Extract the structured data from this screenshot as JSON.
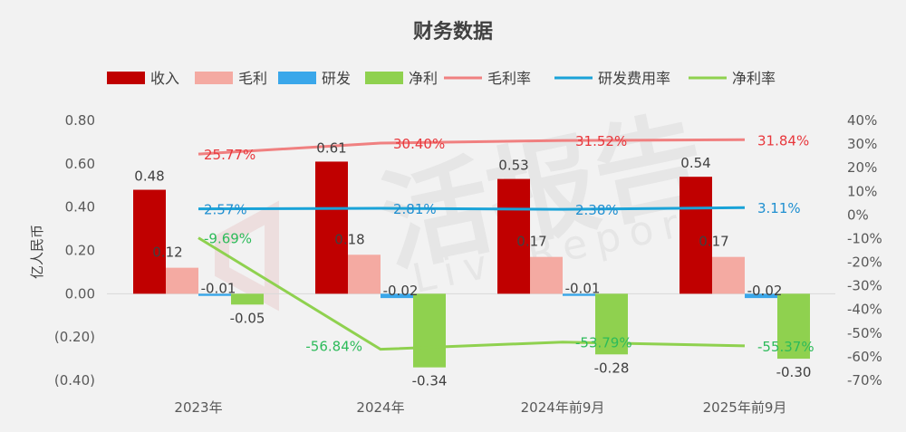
{
  "chart_data": {
    "type": "bar",
    "title": "财务数据",
    "categories": [
      "2023年",
      "2024年",
      "2024年前9月",
      "2025年前9月"
    ],
    "ylabel": "亿人民币",
    "ylim": [
      -0.4,
      0.8
    ],
    "y_ticks": [
      "0.80",
      "0.60",
      "0.40",
      "0.20",
      "0.00",
      "(0.20)",
      "(0.40)"
    ],
    "y2lim": [
      -0.7,
      0.4
    ],
    "y2_ticks": [
      "40%",
      "30%",
      "20%",
      "10%",
      "0%",
      "-10%",
      "-20%",
      "-30%",
      "-40%",
      "-50%",
      "-60%",
      "-70%"
    ],
    "legend_position": "top",
    "grid": false,
    "series": [
      {
        "name": "收入",
        "kind": "bar",
        "axis": "left",
        "color": "#c00000",
        "values": [
          0.48,
          0.61,
          0.53,
          0.54
        ],
        "labels": [
          "0.48",
          "0.61",
          "0.53",
          "0.54"
        ]
      },
      {
        "name": "毛利",
        "kind": "bar",
        "axis": "left",
        "color": "#f4aaa2",
        "values": [
          0.12,
          0.18,
          0.17,
          0.17
        ],
        "labels": [
          "0.12",
          "0.18",
          "0.17",
          "0.17"
        ]
      },
      {
        "name": "研发",
        "kind": "bar",
        "axis": "left",
        "color": "#3aa7ea",
        "values": [
          -0.01,
          -0.02,
          -0.01,
          -0.02
        ],
        "labels": [
          "-0.01",
          "-0.02",
          "-0.01",
          "-0.02"
        ]
      },
      {
        "name": "净利",
        "kind": "bar",
        "axis": "left",
        "color": "#8fd14f",
        "values": [
          -0.05,
          -0.34,
          -0.28,
          -0.3
        ],
        "labels": [
          "-0.05",
          "-0.34",
          "-0.28",
          "-0.30"
        ]
      },
      {
        "name": "毛利率",
        "kind": "line",
        "axis": "right",
        "color": "#f08080",
        "values": [
          25.77,
          30.4,
          31.52,
          31.84
        ],
        "labels": [
          "25.77%",
          "30.40%",
          "31.52%",
          "31.84%"
        ]
      },
      {
        "name": "研发费用率",
        "kind": "line",
        "axis": "right",
        "color": "#1aa3d8",
        "values": [
          2.57,
          2.81,
          2.38,
          3.11
        ],
        "labels": [
          "2.57%",
          "2.81%",
          "2.38%",
          "3.11%"
        ]
      },
      {
        "name": "净利率",
        "kind": "line",
        "axis": "right",
        "color": "#8fd14f",
        "values": [
          -9.69,
          -56.84,
          -53.79,
          -55.37
        ],
        "labels": [
          "-9.69%",
          "-56.84%",
          "-53.79%",
          "-55.37%"
        ]
      }
    ],
    "label_colors": {
      "毛利率": "#e8383d",
      "研发费用率": "#1f8fd0",
      "净利率": "#2dbb5a"
    },
    "negative_tick_color": "#e02020"
  },
  "watermark": "活报告 Live Report"
}
